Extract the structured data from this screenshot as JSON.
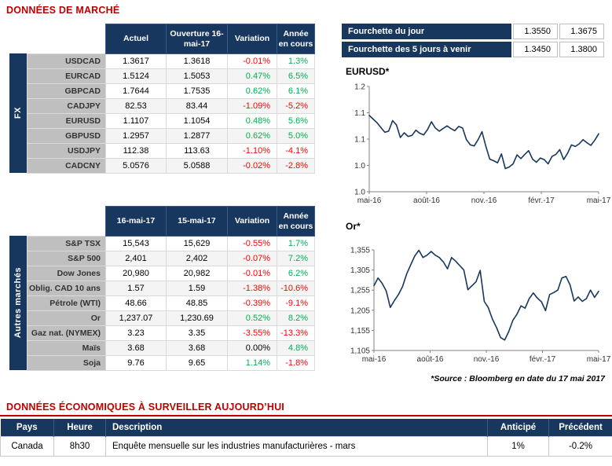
{
  "titles": {
    "market": "DONNÉES DE MARCHÉ",
    "economic": "DONNÉES ÉCONOMIQUES À SURVEILLER AUJOURD’HUI"
  },
  "palette": {
    "navy": "#17375E",
    "title_red": "#C00000",
    "positive": "#00B050",
    "negative": "#FF0000",
    "neutral": "#000000",
    "label_gray": "#BFBFBF",
    "line_color": "#17375E"
  },
  "fx_table": {
    "side_label": "FX",
    "headers": [
      "Actuel",
      "Ouverture 16-mai-17",
      "Variation",
      "Année en cours"
    ],
    "rows": [
      {
        "label": "USDCAD",
        "values": [
          "1.3617",
          "1.3618",
          "-0.01%",
          "1.3%"
        ]
      },
      {
        "label": "EURCAD",
        "values": [
          "1.5124",
          "1.5053",
          "0.47%",
          "6.5%"
        ]
      },
      {
        "label": "GBPCAD",
        "values": [
          "1.7644",
          "1.7535",
          "0.62%",
          "6.1%"
        ]
      },
      {
        "label": "CADJPY",
        "values": [
          "82.53",
          "83.44",
          "-1.09%",
          "-5.2%"
        ]
      },
      {
        "label": "EURUSD",
        "values": [
          "1.1107",
          "1.1054",
          "0.48%",
          "5.6%"
        ]
      },
      {
        "label": "GBPUSD",
        "values": [
          "1.2957",
          "1.2877",
          "0.62%",
          "5.0%"
        ]
      },
      {
        "label": "USDJPY",
        "values": [
          "112.38",
          "113.63",
          "-1.10%",
          "-4.1%"
        ]
      },
      {
        "label": "CADCNY",
        "values": [
          "5.0576",
          "5.0588",
          "-0.02%",
          "-2.8%"
        ]
      }
    ]
  },
  "markets_table": {
    "side_label": "Autres marchés",
    "headers": [
      "16-mai-17",
      "15-mai-17",
      "Variation",
      "Année en cours"
    ],
    "rows": [
      {
        "label": "S&P TSX",
        "values": [
          "15,543",
          "15,629",
          "-0.55%",
          "1.7%"
        ]
      },
      {
        "label": "S&P 500",
        "values": [
          "2,401",
          "2,402",
          "-0.07%",
          "7.2%"
        ]
      },
      {
        "label": "Dow Jones",
        "values": [
          "20,980",
          "20,982",
          "-0.01%",
          "6.2%"
        ]
      },
      {
        "label": "Oblig. CAD 10 ans",
        "values": [
          "1.57",
          "1.59",
          "-1.38%",
          "-10.6%"
        ]
      },
      {
        "label": "Pétrole (WTI)",
        "values": [
          "48.66",
          "48.85",
          "-0.39%",
          "-9.1%"
        ]
      },
      {
        "label": "Or",
        "values": [
          "1,237.07",
          "1,230.69",
          "0.52%",
          "8.2%"
        ]
      },
      {
        "label": "Gaz nat. (NYMEX)",
        "values": [
          "3.23",
          "3.35",
          "-3.55%",
          "-13.3%"
        ]
      },
      {
        "label": "Maïs",
        "values": [
          "3.68",
          "3.68",
          "0.00%",
          "4.8%"
        ]
      },
      {
        "label": "Soja",
        "values": [
          "9.76",
          "9.65",
          "1.14%",
          "-1.8%"
        ]
      }
    ]
  },
  "range_table": {
    "rows": [
      {
        "label": "Fourchette du jour",
        "low": "1.3550",
        "high": "1.3675"
      },
      {
        "label": "Fourchette des 5 jours à venir",
        "low": "1.3450",
        "high": "1.3800"
      }
    ]
  },
  "source_note": "*Source : Bloomberg en date du 17 mai 2017",
  "econ_table": {
    "headers": [
      "Pays",
      "Heure",
      "Description",
      "Anticipé",
      "Précédent"
    ],
    "rows": [
      {
        "pays": "Canada",
        "heure": "8h30",
        "description": "Enquête mensuelle sur les industries manufacturières - mars",
        "anticipe": "1%",
        "precedent": "-0.2%"
      }
    ]
  },
  "chart_data": [
    {
      "type": "line",
      "title": "EURUSD*",
      "x_tick_labels": [
        "mai-16",
        "août-16",
        "nov.-16",
        "févr.-17",
        "mai-17"
      ],
      "y_ticks": [
        1.0,
        1.05,
        1.1,
        1.15,
        1.2
      ],
      "y_tick_labels": [
        "1.0",
        "1.0",
        "1.1",
        "1.1",
        "1.2"
      ],
      "ylim": [
        1.0,
        1.2
      ],
      "values": [
        1.145,
        1.138,
        1.131,
        1.122,
        1.113,
        1.115,
        1.135,
        1.127,
        1.103,
        1.112,
        1.105,
        1.107,
        1.117,
        1.111,
        1.108,
        1.118,
        1.133,
        1.121,
        1.115,
        1.12,
        1.125,
        1.12,
        1.116,
        1.124,
        1.121,
        1.099,
        1.089,
        1.087,
        1.099,
        1.114,
        1.086,
        1.062,
        1.059,
        1.055,
        1.072,
        1.044,
        1.047,
        1.053,
        1.07,
        1.063,
        1.071,
        1.078,
        1.062,
        1.056,
        1.064,
        1.061,
        1.053,
        1.067,
        1.071,
        1.08,
        1.061,
        1.073,
        1.089,
        1.086,
        1.091,
        1.099,
        1.093,
        1.088,
        1.098,
        1.11
      ]
    },
    {
      "type": "line",
      "title": "Or*",
      "x_tick_labels": [
        "mai-16",
        "août-16",
        "nov.-16",
        "févr.-17",
        "mai-17"
      ],
      "y_ticks": [
        1105,
        1155,
        1205,
        1255,
        1305,
        1355
      ],
      "y_tick_labels": [
        "1,105",
        "1,155",
        "1,205",
        "1,255",
        "1,305",
        "1,355"
      ],
      "ylim": [
        1105,
        1355
      ],
      "values": [
        1266,
        1285,
        1272,
        1253,
        1212,
        1229,
        1244,
        1264,
        1295,
        1318,
        1340,
        1354,
        1336,
        1342,
        1351,
        1342,
        1336,
        1325,
        1308,
        1336,
        1327,
        1316,
        1305,
        1256,
        1266,
        1276,
        1304,
        1227,
        1211,
        1183,
        1162,
        1137,
        1131,
        1152,
        1180,
        1195,
        1216,
        1210,
        1234,
        1248,
        1235,
        1226,
        1204,
        1244,
        1249,
        1255,
        1285,
        1289,
        1268,
        1228,
        1238,
        1227,
        1234,
        1255,
        1237,
        1252
      ]
    }
  ]
}
